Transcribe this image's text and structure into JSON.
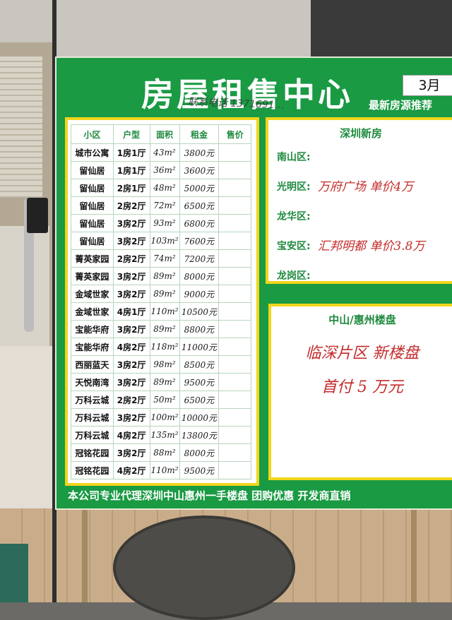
{
  "board": {
    "title": "房屋租售中心",
    "month": "3月",
    "subtitle": "最新房源推荐",
    "handwritten_note": "联系电话 1371691…",
    "footer": "本公司专业代理深圳中山惠州一手楼盘 团购优惠 开发商直销"
  },
  "listing_table": {
    "headers": [
      "小区",
      "户型",
      "面积",
      "租金",
      "售价"
    ],
    "rows": [
      [
        "城市公寓",
        "1房1厅",
        "43m²",
        "3800元",
        ""
      ],
      [
        "留仙居",
        "1房1厅",
        "36m²",
        "3600元",
        ""
      ],
      [
        "留仙居",
        "2房1厅",
        "48m²",
        "5000元",
        ""
      ],
      [
        "留仙居",
        "2房2厅",
        "72m²",
        "6500元",
        ""
      ],
      [
        "留仙居",
        "3房2厅",
        "93m²",
        "6800元",
        ""
      ],
      [
        "留仙居",
        "3房2厅",
        "103m²",
        "7600元",
        ""
      ],
      [
        "菁英家园",
        "2房2厅",
        "74m²",
        "7200元",
        ""
      ],
      [
        "菁英家园",
        "3房2厅",
        "89m²",
        "8000元",
        ""
      ],
      [
        "金域世家",
        "3房2厅",
        "89m²",
        "9000元",
        ""
      ],
      [
        "金域世家",
        "4房1厅",
        "110m²",
        "10500元",
        ""
      ],
      [
        "宝能华府",
        "3房2厅",
        "89m²",
        "8800元",
        ""
      ],
      [
        "宝能华府",
        "4房2厅",
        "118m²",
        "11000元",
        ""
      ],
      [
        "西丽蓝天",
        "3房2厅",
        "98m²",
        "8500元",
        ""
      ],
      [
        "天悦南湾",
        "3房2厅",
        "89m²",
        "9500元",
        ""
      ],
      [
        "万科云城",
        "2房2厅",
        "50m²",
        "6500元",
        ""
      ],
      [
        "万科云城",
        "3房2厅",
        "100m²",
        "10000元",
        ""
      ],
      [
        "万科云城",
        "4房2厅",
        "135m²",
        "13800元",
        ""
      ],
      [
        "冠铭花园",
        "3房2厅",
        "88m²",
        "8000元",
        ""
      ],
      [
        "冠铭花园",
        "4房2厅",
        "110m²",
        "9500元",
        ""
      ]
    ]
  },
  "shenzhen_panel": {
    "heading": "深圳新房",
    "districts": [
      {
        "name": "南山区:",
        "note": ""
      },
      {
        "name": "光明区:",
        "note": "万府广场 单价4万"
      },
      {
        "name": "龙华区:",
        "note": ""
      },
      {
        "name": "宝安区:",
        "note": "汇邦明都 单价3.8万"
      },
      {
        "name": "龙岗区:",
        "note": ""
      }
    ]
  },
  "zhongshan_panel": {
    "heading": "中山/惠州楼盘",
    "line1": "临深片区 新楼盘",
    "line2": "首付 5 万元"
  },
  "colors": {
    "board_green": "#199a43",
    "panel_border_yellow": "#f1d51b",
    "heading_green": "#1e8a3e",
    "handwriting_red": "#c42b2b"
  }
}
